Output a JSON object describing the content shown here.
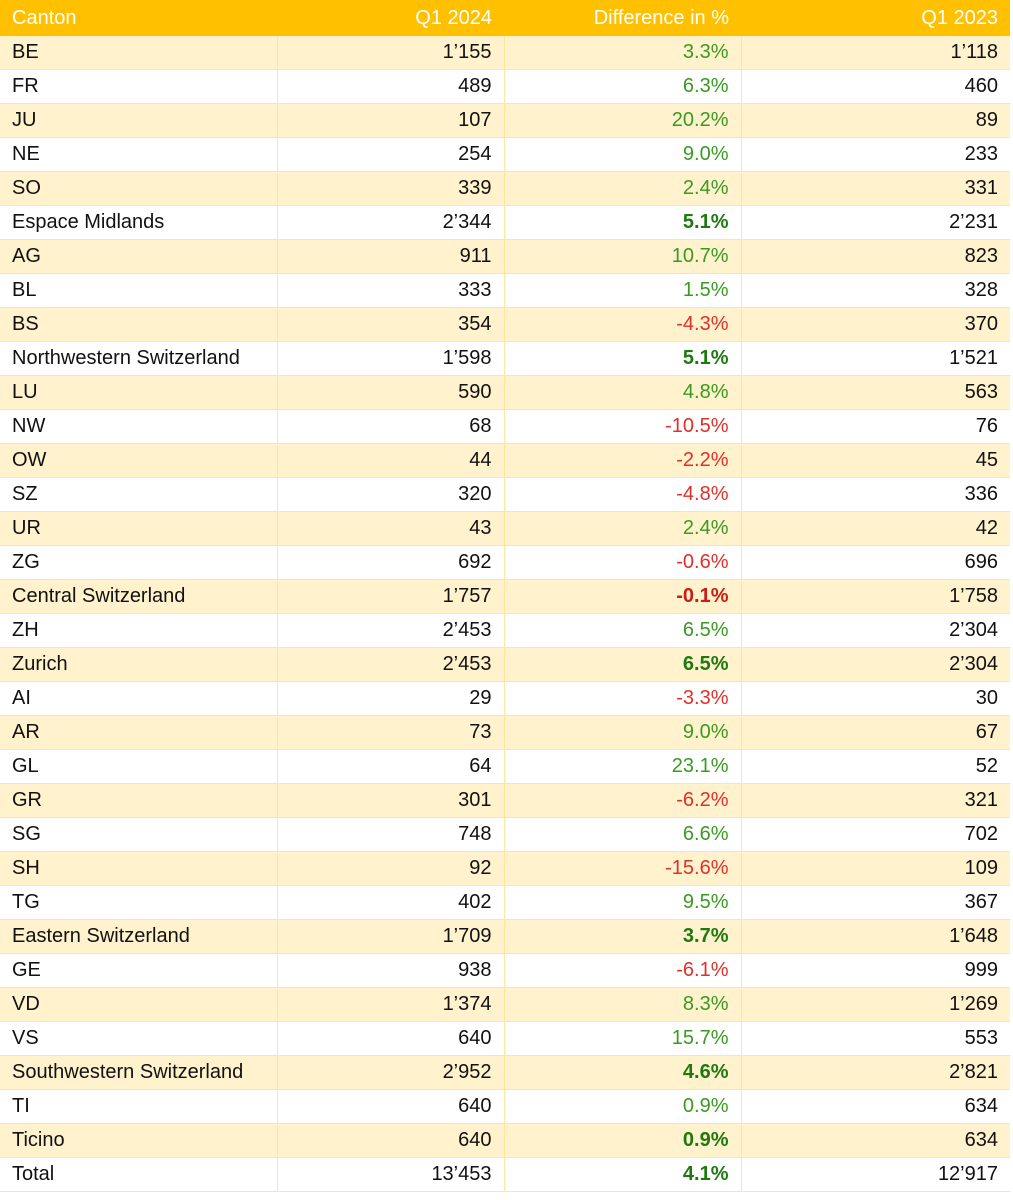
{
  "headers": [
    "Canton",
    "Q1 2024",
    "Difference in %",
    "Q1 2023"
  ],
  "rows": [
    {
      "name": "BE",
      "q1_2024": "1’155",
      "diff": "3.3%",
      "q1_2023": "1’118",
      "sign": "pos",
      "bold": false
    },
    {
      "name": "FR",
      "q1_2024": "489",
      "diff": "6.3%",
      "q1_2023": "460",
      "sign": "pos",
      "bold": false
    },
    {
      "name": "JU",
      "q1_2024": "107",
      "diff": "20.2%",
      "q1_2023": "89",
      "sign": "pos",
      "bold": false
    },
    {
      "name": "NE",
      "q1_2024": "254",
      "diff": "9.0%",
      "q1_2023": "233",
      "sign": "pos",
      "bold": false
    },
    {
      "name": "SO",
      "q1_2024": "339",
      "diff": "2.4%",
      "q1_2023": "331",
      "sign": "pos",
      "bold": false
    },
    {
      "name": "Espace Midlands",
      "q1_2024": "2’344",
      "diff": "5.1%",
      "q1_2023": "2’231",
      "sign": "pos",
      "bold": true
    },
    {
      "name": "AG",
      "q1_2024": "911",
      "diff": "10.7%",
      "q1_2023": "823",
      "sign": "pos",
      "bold": false
    },
    {
      "name": "BL",
      "q1_2024": "333",
      "diff": "1.5%",
      "q1_2023": "328",
      "sign": "pos",
      "bold": false
    },
    {
      "name": "BS",
      "q1_2024": "354",
      "diff": "-4.3%",
      "q1_2023": "370",
      "sign": "neg",
      "bold": false
    },
    {
      "name": "Northwestern Switzerland",
      "q1_2024": "1’598",
      "diff": "5.1%",
      "q1_2023": "1’521",
      "sign": "pos",
      "bold": true
    },
    {
      "name": "LU",
      "q1_2024": "590",
      "diff": "4.8%",
      "q1_2023": "563",
      "sign": "pos",
      "bold": false
    },
    {
      "name": "NW",
      "q1_2024": "68",
      "diff": "-10.5%",
      "q1_2023": "76",
      "sign": "neg",
      "bold": false
    },
    {
      "name": "OW",
      "q1_2024": "44",
      "diff": "-2.2%",
      "q1_2023": "45",
      "sign": "neg",
      "bold": false
    },
    {
      "name": "SZ",
      "q1_2024": "320",
      "diff": "-4.8%",
      "q1_2023": "336",
      "sign": "neg",
      "bold": false
    },
    {
      "name": "UR",
      "q1_2024": "43",
      "diff": "2.4%",
      "q1_2023": "42",
      "sign": "pos",
      "bold": false
    },
    {
      "name": "ZG",
      "q1_2024": "692",
      "diff": "-0.6%",
      "q1_2023": "696",
      "sign": "neg",
      "bold": false
    },
    {
      "name": "Central Switzerland",
      "q1_2024": "1’757",
      "diff": "-0.1%",
      "q1_2023": "1’758",
      "sign": "neg",
      "bold": true
    },
    {
      "name": "ZH",
      "q1_2024": "2’453",
      "diff": "6.5%",
      "q1_2023": "2’304",
      "sign": "pos",
      "bold": false
    },
    {
      "name": "Zurich",
      "q1_2024": "2’453",
      "diff": "6.5%",
      "q1_2023": "2’304",
      "sign": "pos",
      "bold": true
    },
    {
      "name": "AI",
      "q1_2024": "29",
      "diff": "-3.3%",
      "q1_2023": "30",
      "sign": "neg",
      "bold": false
    },
    {
      "name": "AR",
      "q1_2024": "73",
      "diff": "9.0%",
      "q1_2023": "67",
      "sign": "pos",
      "bold": false
    },
    {
      "name": "GL",
      "q1_2024": "64",
      "diff": "23.1%",
      "q1_2023": "52",
      "sign": "pos",
      "bold": false
    },
    {
      "name": "GR",
      "q1_2024": "301",
      "diff": "-6.2%",
      "q1_2023": "321",
      "sign": "neg",
      "bold": false
    },
    {
      "name": "SG",
      "q1_2024": "748",
      "diff": "6.6%",
      "q1_2023": "702",
      "sign": "pos",
      "bold": false
    },
    {
      "name": "SH",
      "q1_2024": "92",
      "diff": "-15.6%",
      "q1_2023": "109",
      "sign": "neg",
      "bold": false
    },
    {
      "name": "TG",
      "q1_2024": "402",
      "diff": "9.5%",
      "q1_2023": "367",
      "sign": "pos",
      "bold": false
    },
    {
      "name": "Eastern Switzerland",
      "q1_2024": "1’709",
      "diff": "3.7%",
      "q1_2023": "1’648",
      "sign": "pos",
      "bold": true
    },
    {
      "name": "GE",
      "q1_2024": "938",
      "diff": "-6.1%",
      "q1_2023": "999",
      "sign": "neg",
      "bold": false
    },
    {
      "name": "VD",
      "q1_2024": "1’374",
      "diff": "8.3%",
      "q1_2023": "1’269",
      "sign": "pos",
      "bold": false
    },
    {
      "name": "VS",
      "q1_2024": "640",
      "diff": "15.7%",
      "q1_2023": "553",
      "sign": "pos",
      "bold": false
    },
    {
      "name": "Southwestern Switzerland",
      "q1_2024": "2’952",
      "diff": "4.6%",
      "q1_2023": "2’821",
      "sign": "pos",
      "bold": true
    },
    {
      "name": "TI",
      "q1_2024": "640",
      "diff": "0.9%",
      "q1_2023": "634",
      "sign": "pos",
      "bold": false
    },
    {
      "name": "Ticino",
      "q1_2024": "640",
      "diff": "0.9%",
      "q1_2023": "634",
      "sign": "pos",
      "bold": true
    },
    {
      "name": "Total",
      "q1_2024": "13’453",
      "diff": "4.1%",
      "q1_2023": "12’917",
      "sign": "pos",
      "bold": true
    }
  ],
  "colors": {
    "header_bg": "#ffc000",
    "header_text": "#ffffff",
    "band_bg": "#fff2cc",
    "row_border": "#ffe69c",
    "positive": "#3a9a22",
    "negative": "#e0302a"
  }
}
